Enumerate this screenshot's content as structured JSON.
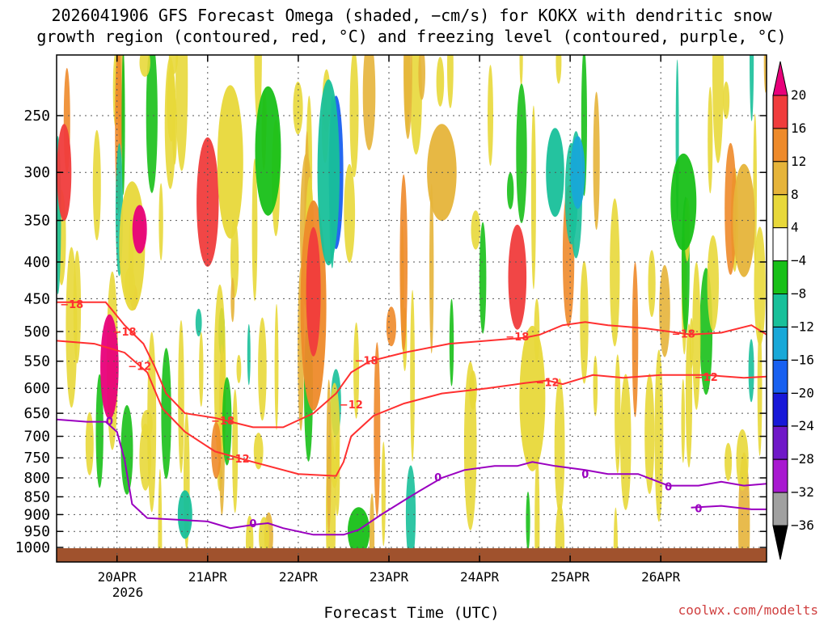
{
  "chart_data": {
    "type": "heatmap",
    "title_line1": "2026041906 GFS Forecast Omega (shaded, −cm/s) for KOKX with dendritic snow",
    "title_line2": "growth region (contoured, red, °C) and freezing level (contoured, purple, °C)",
    "xlabel": "Forecast Time (UTC)",
    "credit": "coolwx.com/modelts",
    "x_ticks": [
      "20APR",
      "21APR",
      "22APR",
      "23APR",
      "24APR",
      "25APR",
      "26APR"
    ],
    "x_year_label": "2026",
    "x_range_hours": [
      -16,
      172
    ],
    "y_ticks": [
      "250",
      "300",
      "350",
      "400",
      "450",
      "500",
      "550",
      "600",
      "650",
      "700",
      "750",
      "800",
      "850",
      "900",
      "950",
      "1000"
    ],
    "y_tick_values": [
      250,
      300,
      350,
      400,
      450,
      500,
      550,
      600,
      650,
      700,
      750,
      800,
      850,
      900,
      950,
      1000
    ],
    "y_range_hpa": [
      200,
      1020
    ],
    "colorbar": {
      "labels": [
        "20",
        "16",
        "12",
        "8",
        "4",
        "−4",
        "−8",
        "−12",
        "−16",
        "−20",
        "−24",
        "−28",
        "−32",
        "−36"
      ],
      "colors": [
        "#e8007a",
        "#f03c3c",
        "#ee8a2a",
        "#e6b43a",
        "#e8d83a",
        "#ffffff",
        "#18c018",
        "#18c09a",
        "#18a8d8",
        "#1860f0",
        "#1818d8",
        "#7018c8",
        "#a818d0",
        "#a0a0a0",
        "#000000"
      ]
    },
    "contours": [
      {
        "label": "−18",
        "color": "#ff3030",
        "points": [
          [
            -16,
            455
          ],
          [
            -3,
            455
          ],
          [
            2,
            490
          ],
          [
            7,
            520
          ],
          [
            10,
            560
          ],
          [
            13,
            610
          ],
          [
            18,
            650
          ],
          [
            26,
            660
          ],
          [
            36,
            680
          ],
          [
            44,
            680
          ],
          [
            52,
            650
          ],
          [
            58,
            610
          ],
          [
            62,
            570
          ],
          [
            67,
            550
          ],
          [
            76,
            535
          ],
          [
            88,
            520
          ],
          [
            98,
            515
          ],
          [
            108,
            510
          ],
          [
            112,
            505
          ],
          [
            118,
            490
          ],
          [
            124,
            485
          ],
          [
            130,
            490
          ],
          [
            140,
            495
          ],
          [
            152,
            505
          ],
          [
            160,
            502
          ],
          [
            168,
            490
          ],
          [
            172,
            505
          ]
        ],
        "label_points": [
          [
            -12,
            458
          ],
          [
            2,
            500
          ],
          [
            28,
            665
          ],
          [
            66,
            548
          ],
          [
            106,
            508
          ],
          [
            150,
            503
          ]
        ]
      },
      {
        "label": "−12",
        "color": "#ff3030",
        "points": [
          [
            -16,
            515
          ],
          [
            -6,
            520
          ],
          [
            2,
            535
          ],
          [
            8,
            570
          ],
          [
            12,
            640
          ],
          [
            18,
            690
          ],
          [
            26,
            735
          ],
          [
            36,
            760
          ],
          [
            48,
            790
          ],
          [
            58,
            795
          ],
          [
            60,
            760
          ],
          [
            62,
            700
          ],
          [
            68,
            655
          ],
          [
            76,
            630
          ],
          [
            86,
            610
          ],
          [
            98,
            600
          ],
          [
            108,
            590
          ],
          [
            114,
            585
          ],
          [
            118,
            592
          ],
          [
            126,
            575
          ],
          [
            134,
            580
          ],
          [
            144,
            575
          ],
          [
            156,
            575
          ],
          [
            166,
            580
          ],
          [
            172,
            578
          ]
        ],
        "label_points": [
          [
            6,
            558
          ],
          [
            32,
            752
          ],
          [
            62,
            632
          ],
          [
            114,
            588
          ],
          [
            156,
            578
          ]
        ]
      },
      {
        "label": "0",
        "color": "#9a00c0",
        "points": [
          [
            -16,
            663
          ],
          [
            -8,
            668
          ],
          [
            -3,
            668
          ],
          [
            0,
            690
          ],
          [
            2,
            755
          ],
          [
            4,
            870
          ],
          [
            8,
            910
          ],
          [
            16,
            915
          ],
          [
            24,
            920
          ],
          [
            30,
            940
          ],
          [
            36,
            930
          ],
          [
            40,
            925
          ],
          [
            44,
            940
          ],
          [
            52,
            960
          ],
          [
            60,
            960
          ],
          [
            64,
            945
          ],
          [
            70,
            900
          ],
          [
            76,
            860
          ],
          [
            80,
            835
          ],
          [
            86,
            800
          ],
          [
            92,
            780
          ],
          [
            100,
            770
          ],
          [
            106,
            770
          ],
          [
            110,
            760
          ],
          [
            116,
            770
          ],
          [
            124,
            780
          ],
          [
            130,
            790
          ],
          [
            138,
            790
          ],
          [
            146,
            820
          ],
          [
            154,
            820
          ],
          [
            160,
            810
          ],
          [
            166,
            820
          ],
          [
            172,
            815
          ]
        ],
        "label_points": [
          [
            -2,
            666
          ],
          [
            36,
            925
          ],
          [
            85,
            798
          ],
          [
            124,
            790
          ],
          [
            146,
            822
          ]
        ]
      },
      {
        "label": "0",
        "color": "#9a00c0",
        "points": [
          [
            152,
            880
          ],
          [
            160,
            875
          ],
          [
            168,
            885
          ],
          [
            172,
            885
          ]
        ],
        "label_points": [
          [
            154,
            882
          ]
        ]
      }
    ]
  }
}
